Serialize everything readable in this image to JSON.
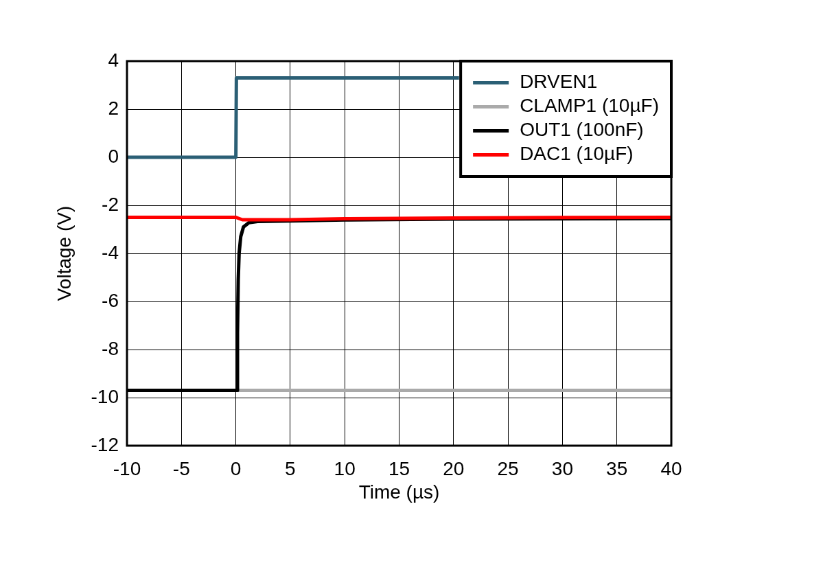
{
  "chart_data": {
    "type": "line",
    "xlabel": "Time (µs)",
    "ylabel": "Voltage (V)",
    "xlim": [
      -10,
      40
    ],
    "xticks": [
      -10,
      -5,
      0,
      5,
      10,
      15,
      20,
      25,
      30,
      35,
      40
    ],
    "ylim": [
      -12,
      4
    ],
    "yticks": [
      -12,
      -10,
      -8,
      -6,
      -4,
      -2,
      0,
      2,
      4
    ],
    "grid": true,
    "legend": "top right",
    "marker": "none",
    "line_style": "solid",
    "series": [
      {
        "name": "DRVEN1",
        "color": "#2b5f75",
        "x": [
          -10,
          0,
          0.05,
          20.5
        ],
        "values": [
          0,
          0,
          3.3,
          3.3
        ]
      },
      {
        "name": "CLAMP1 (10µF)",
        "color": "#aaaaaa",
        "x": [
          0.1,
          40
        ],
        "values": [
          -9.7,
          -9.7
        ]
      },
      {
        "name": "OUT1 (100nF)",
        "color": "#000000",
        "x": [
          -10,
          0.1,
          0.15,
          0.22,
          0.3,
          0.45,
          0.7,
          1.2,
          2,
          5,
          10,
          20,
          40
        ],
        "values": [
          -9.7,
          -9.7,
          -7.3,
          -5.1,
          -4.0,
          -3.3,
          -2.9,
          -2.72,
          -2.67,
          -2.65,
          -2.61,
          -2.57,
          -2.55
        ]
      },
      {
        "name": "DAC1 (10µF)",
        "color": "#ff0000",
        "x": [
          -10,
          0,
          0.6,
          5,
          10,
          20,
          30,
          40
        ],
        "values": [
          -2.5,
          -2.5,
          -2.6,
          -2.6,
          -2.56,
          -2.53,
          -2.51,
          -2.5
        ]
      }
    ]
  }
}
